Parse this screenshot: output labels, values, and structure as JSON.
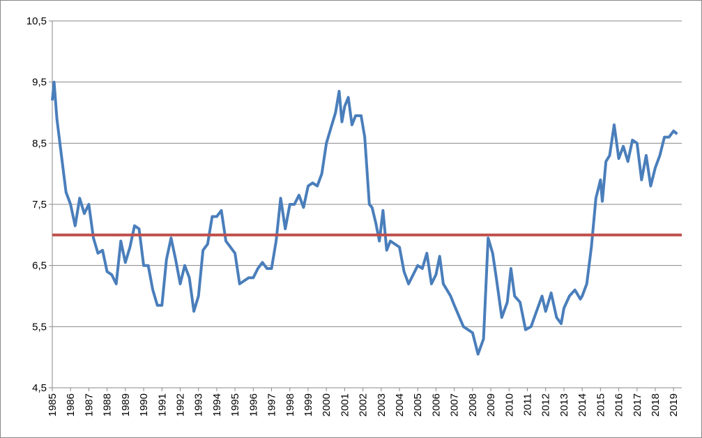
{
  "chart_data": {
    "type": "line",
    "x": [
      1985.0,
      1985.1,
      1985.25,
      1985.5,
      1985.75,
      1986.0,
      1986.25,
      1986.5,
      1986.75,
      1987.0,
      1987.25,
      1987.5,
      1987.75,
      1988.0,
      1988.25,
      1988.5,
      1988.75,
      1989.0,
      1989.25,
      1989.5,
      1989.75,
      1990.0,
      1990.25,
      1990.5,
      1990.75,
      1991.0,
      1991.25,
      1991.5,
      1991.75,
      1992.0,
      1992.25,
      1992.5,
      1992.75,
      1993.0,
      1993.25,
      1993.5,
      1993.75,
      1994.0,
      1994.25,
      1994.5,
      1994.75,
      1995.0,
      1995.25,
      1995.5,
      1995.75,
      1996.0,
      1996.25,
      1996.5,
      1996.75,
      1997.0,
      1997.25,
      1997.5,
      1997.75,
      1998.0,
      1998.25,
      1998.5,
      1998.75,
      1999.0,
      1999.25,
      1999.5,
      1999.75,
      2000.0,
      2000.25,
      2000.5,
      2000.7,
      2000.85,
      2001.0,
      2001.2,
      2001.4,
      2001.6,
      2001.9,
      2002.1,
      2002.35,
      2002.5,
      2002.7,
      2002.9,
      2003.1,
      2003.3,
      2003.5,
      2003.75,
      2004.0,
      2004.25,
      2004.5,
      2004.75,
      2005.0,
      2005.25,
      2005.5,
      2005.75,
      2006.0,
      2006.2,
      2006.4,
      2006.6,
      2006.8,
      2007.0,
      2007.5,
      2008.0,
      2008.3,
      2008.6,
      2008.85,
      2009.1,
      2009.3,
      2009.6,
      2009.9,
      2010.1,
      2010.3,
      2010.6,
      2010.9,
      2011.2,
      2011.5,
      2011.8,
      2012.0,
      2012.3,
      2012.6,
      2012.85,
      2013.0,
      2013.3,
      2013.6,
      2013.9,
      2014.0,
      2014.25,
      2014.5,
      2014.75,
      2015.0,
      2015.1,
      2015.3,
      2015.5,
      2015.75,
      2016.0,
      2016.25,
      2016.5,
      2016.75,
      2017.0,
      2017.25,
      2017.5,
      2017.75,
      2018.0,
      2018.25,
      2018.5,
      2018.75,
      2019.0,
      2019.2
    ],
    "series": [
      {
        "color": "#4a7ebb",
        "values": [
          9.2,
          9.5,
          8.9,
          8.3,
          7.7,
          7.5,
          7.15,
          7.6,
          7.35,
          7.5,
          6.95,
          6.7,
          6.75,
          6.4,
          6.35,
          6.2,
          6.9,
          6.55,
          6.8,
          7.15,
          7.1,
          6.5,
          6.5,
          6.1,
          5.85,
          5.85,
          6.6,
          6.95,
          6.6,
          6.2,
          6.5,
          6.3,
          5.75,
          6.0,
          6.75,
          6.85,
          7.3,
          7.3,
          7.4,
          6.9,
          6.8,
          6.7,
          6.2,
          6.25,
          6.3,
          6.3,
          6.45,
          6.55,
          6.45,
          6.45,
          6.9,
          7.6,
          7.1,
          7.5,
          7.5,
          7.65,
          7.45,
          7.8,
          7.85,
          7.8,
          8.0,
          8.5,
          8.75,
          9.0,
          9.35,
          8.85,
          9.1,
          9.25,
          8.8,
          8.95,
          8.95,
          8.6,
          7.5,
          7.45,
          7.2,
          6.9,
          7.4,
          6.75,
          6.9,
          6.85,
          6.8,
          6.4,
          6.2,
          6.35,
          6.5,
          6.45,
          6.7,
          6.2,
          6.35,
          6.65,
          6.2,
          6.1,
          6.0,
          5.85,
          5.5,
          5.4,
          5.05,
          5.3,
          6.95,
          6.7,
          6.3,
          5.65,
          5.9,
          6.45,
          6.0,
          5.9,
          5.45,
          5.5,
          5.75,
          6.0,
          5.75,
          6.05,
          5.65,
          5.55,
          5.8,
          6.0,
          6.1,
          5.95,
          6.0,
          6.2,
          6.8,
          7.6,
          7.9,
          7.55,
          8.2,
          8.3,
          8.8,
          8.25,
          8.45,
          8.2,
          8.55,
          8.5,
          7.9,
          8.3,
          7.8,
          8.1,
          8.3,
          8.6,
          8.6,
          8.7,
          8.65
        ]
      }
    ],
    "reference_line": {
      "value": 7,
      "color": "#c0504d"
    },
    "xlim": [
      1985,
      2019.45
    ],
    "xticks": [
      1985,
      1986,
      1987,
      1988,
      1989,
      1990,
      1991,
      1992,
      1993,
      1994,
      1995,
      1996,
      1997,
      1998,
      1999,
      2000,
      2001,
      2002,
      2003,
      2004,
      2005,
      2006,
      2007,
      2008,
      2009,
      2010,
      2011,
      2012,
      2013,
      2014,
      2015,
      2016,
      2017,
      2018,
      2019
    ],
    "ylim": [
      4.5,
      10.5
    ],
    "yticks": [
      {
        "value": 4.5,
        "label": "4,5"
      },
      {
        "value": 5.5,
        "label": "5,5"
      },
      {
        "value": 6.5,
        "label": "6,5"
      },
      {
        "value": 7.5,
        "label": "7,5"
      },
      {
        "value": 8.5,
        "label": "8,5"
      },
      {
        "value": 9.5,
        "label": "9,5"
      },
      {
        "value": 10.5,
        "label": "10,5"
      }
    ],
    "grid": true
  }
}
